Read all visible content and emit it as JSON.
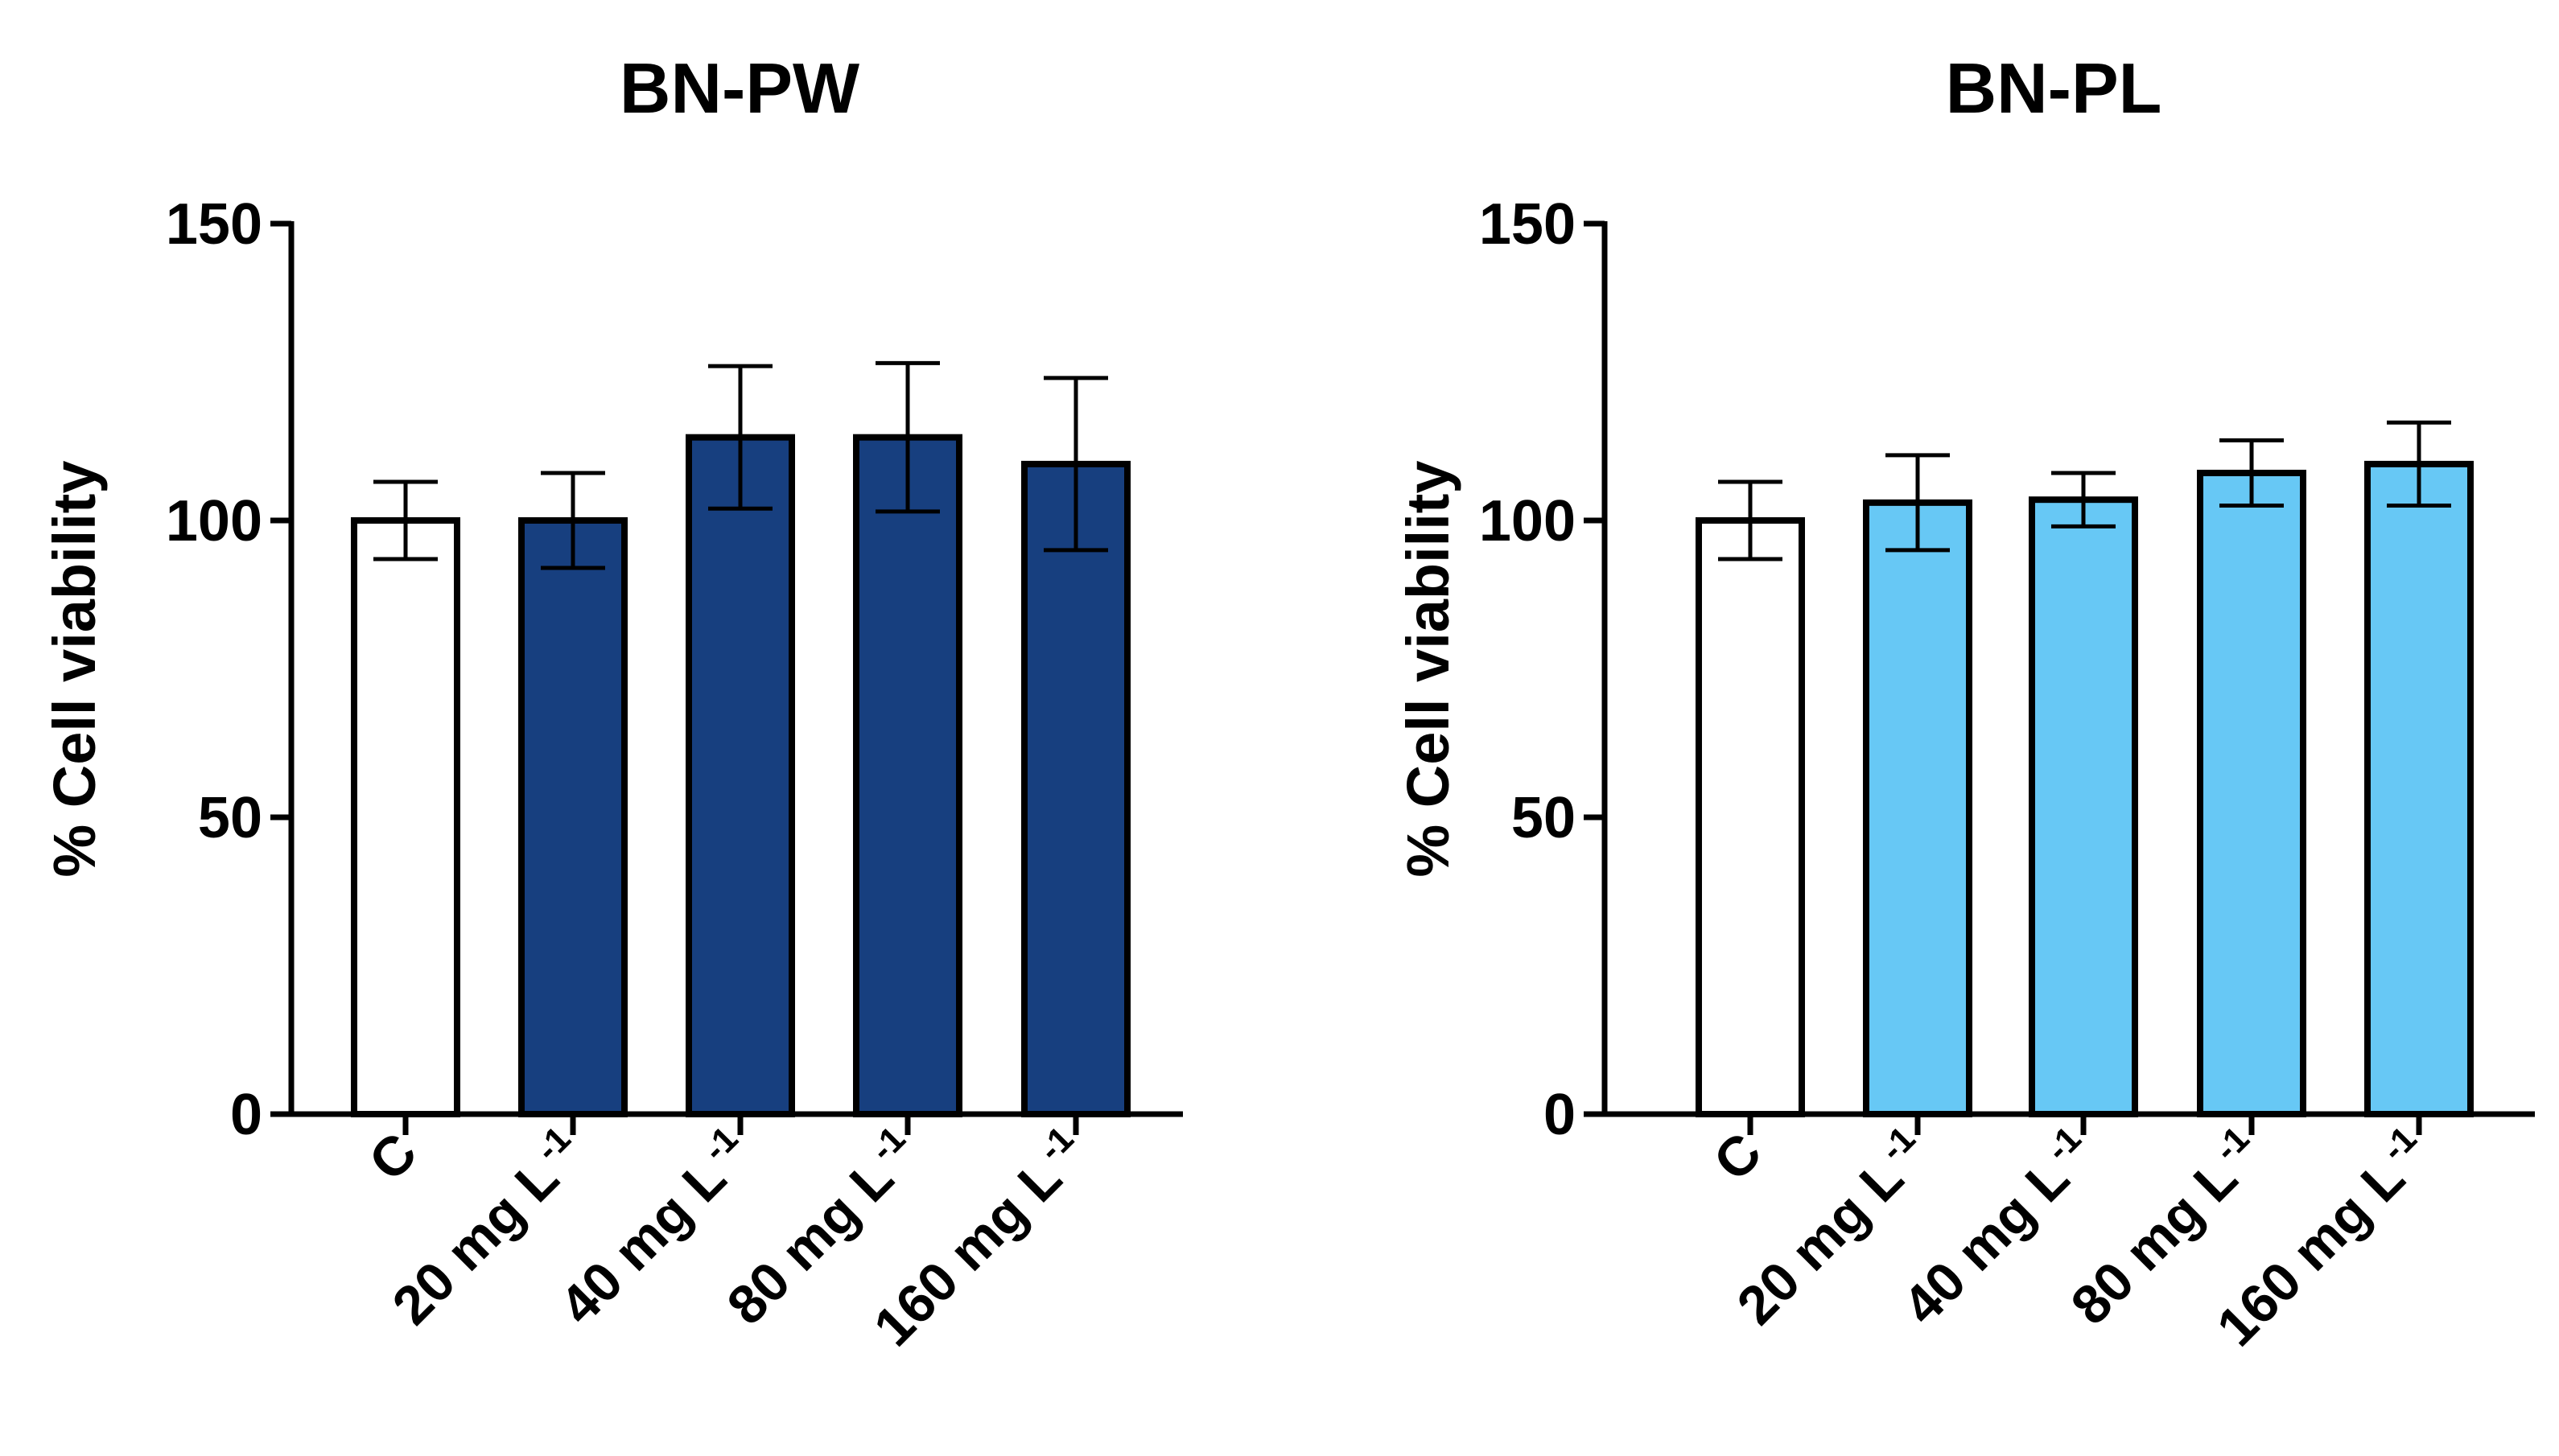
{
  "chart_data": [
    {
      "type": "bar",
      "title": "BN-PW",
      "ylabel": "% Cell viability",
      "xlabel": "",
      "ylim": [
        0,
        150
      ],
      "yticks": [
        0,
        50,
        100,
        150
      ],
      "categories": [
        {
          "main": "C",
          "sup": ""
        },
        {
          "main": "20 mg L",
          "sup": "-1"
        },
        {
          "main": "40 mg L",
          "sup": "-1"
        },
        {
          "main": "80 mg L",
          "sup": "-1"
        },
        {
          "main": "160 mg L",
          "sup": "-1"
        }
      ],
      "values": [
        100,
        100,
        114,
        114,
        109.5
      ],
      "errors": [
        6.5,
        8,
        12,
        12.5,
        14.5
      ],
      "colors": [
        "#ffffff",
        "#173f7f",
        "#173f7f",
        "#173f7f",
        "#173f7f"
      ],
      "grid": false,
      "legend": "none"
    },
    {
      "type": "bar",
      "title": "BN-PL",
      "ylabel": "% Cell viability",
      "xlabel": "",
      "ylim": [
        0,
        150
      ],
      "yticks": [
        0,
        50,
        100,
        150
      ],
      "categories": [
        {
          "main": "C",
          "sup": ""
        },
        {
          "main": "20 mg L",
          "sup": "-1"
        },
        {
          "main": "40 mg L",
          "sup": "-1"
        },
        {
          "main": "80 mg L",
          "sup": "-1"
        },
        {
          "main": "160 mg L",
          "sup": "-1"
        }
      ],
      "values": [
        100,
        103,
        103.5,
        108,
        109.5
      ],
      "errors": [
        6.5,
        8,
        4.5,
        5.5,
        7
      ],
      "colors": [
        "#ffffff",
        "#67c8f5",
        "#67c8f5",
        "#67c8f5",
        "#67c8f5"
      ],
      "grid": false,
      "legend": "none"
    }
  ]
}
